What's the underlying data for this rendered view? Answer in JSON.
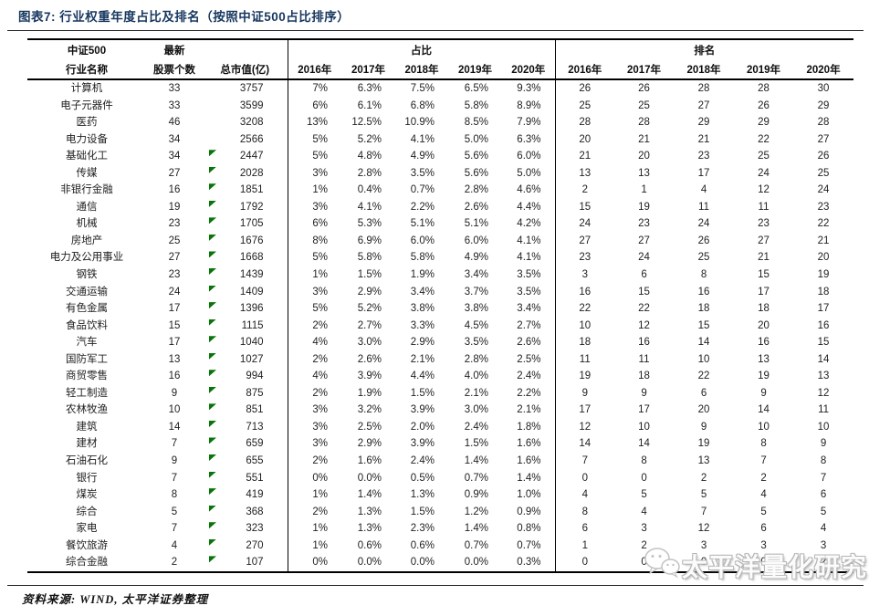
{
  "title": "图表7: 行业权重年度占比及排名（按照中证500占比排序）",
  "source_note": "资料来源: WIND, 太平洋证券整理",
  "watermark_text": "太平洋量化研究",
  "colors": {
    "title_navy": "#17375E",
    "flag_green": "#077507",
    "border_black": "#000000"
  },
  "chart_data": {
    "type": "table",
    "title": "图表7: 行业权重年度占比及排名（按照中证500占比排序）",
    "header": {
      "name_line1": "中证500",
      "name_line2": "行业名称",
      "latest_label": "最新",
      "count_label": "股票个数",
      "mcap_label": "总市值(亿)",
      "share_group_label": "占比",
      "rank_group_label": "排名",
      "years": [
        "2016年",
        "2017年",
        "2018年",
        "2019年",
        "2020年"
      ]
    },
    "rows": [
      {
        "name": "计算机",
        "count": "33",
        "mcap": "3757",
        "flag": false,
        "share": [
          "7%",
          "6.3%",
          "7.5%",
          "6.5%",
          "9.3%"
        ],
        "rank": [
          "26",
          "26",
          "28",
          "28",
          "30"
        ]
      },
      {
        "name": "电子元器件",
        "count": "33",
        "mcap": "3599",
        "flag": false,
        "share": [
          "6%",
          "6.1%",
          "6.8%",
          "5.8%",
          "8.9%"
        ],
        "rank": [
          "25",
          "25",
          "27",
          "26",
          "29"
        ]
      },
      {
        "name": "医药",
        "count": "46",
        "mcap": "3208",
        "flag": false,
        "share": [
          "13%",
          "12.5%",
          "10.9%",
          "8.5%",
          "7.9%"
        ],
        "rank": [
          "28",
          "28",
          "29",
          "29",
          "28"
        ]
      },
      {
        "name": "电力设备",
        "count": "34",
        "mcap": "2566",
        "flag": false,
        "share": [
          "5%",
          "5.2%",
          "4.1%",
          "5.0%",
          "6.3%"
        ],
        "rank": [
          "20",
          "21",
          "21",
          "22",
          "27"
        ]
      },
      {
        "name": "基础化工",
        "count": "34",
        "mcap": "2447",
        "flag": true,
        "share": [
          "5%",
          "4.8%",
          "4.9%",
          "5.6%",
          "6.0%"
        ],
        "rank": [
          "21",
          "20",
          "23",
          "25",
          "26"
        ]
      },
      {
        "name": "传媒",
        "count": "27",
        "mcap": "2028",
        "flag": true,
        "share": [
          "3%",
          "2.8%",
          "3.5%",
          "5.6%",
          "5.0%"
        ],
        "rank": [
          "13",
          "13",
          "17",
          "24",
          "25"
        ]
      },
      {
        "name": "非银行金融",
        "count": "16",
        "mcap": "1851",
        "flag": true,
        "share": [
          "1%",
          "0.4%",
          "0.7%",
          "2.8%",
          "4.6%"
        ],
        "rank": [
          "2",
          "1",
          "4",
          "12",
          "24"
        ]
      },
      {
        "name": "通信",
        "count": "19",
        "mcap": "1792",
        "flag": true,
        "share": [
          "3%",
          "4.1%",
          "2.2%",
          "2.6%",
          "4.4%"
        ],
        "rank": [
          "15",
          "19",
          "11",
          "11",
          "23"
        ]
      },
      {
        "name": "机械",
        "count": "23",
        "mcap": "1705",
        "flag": true,
        "share": [
          "6%",
          "5.3%",
          "5.1%",
          "5.1%",
          "4.2%"
        ],
        "rank": [
          "24",
          "23",
          "24",
          "23",
          "22"
        ]
      },
      {
        "name": "房地产",
        "count": "25",
        "mcap": "1676",
        "flag": true,
        "share": [
          "8%",
          "6.9%",
          "6.0%",
          "6.0%",
          "4.1%"
        ],
        "rank": [
          "27",
          "27",
          "26",
          "27",
          "21"
        ]
      },
      {
        "name": "电力及公用事业",
        "count": "27",
        "mcap": "1668",
        "flag": true,
        "share": [
          "5%",
          "5.8%",
          "5.8%",
          "4.9%",
          "4.1%"
        ],
        "rank": [
          "23",
          "24",
          "25",
          "21",
          "20"
        ]
      },
      {
        "name": "钢铁",
        "count": "23",
        "mcap": "1439",
        "flag": true,
        "share": [
          "1%",
          "1.5%",
          "1.9%",
          "3.4%",
          "3.5%"
        ],
        "rank": [
          "3",
          "6",
          "8",
          "15",
          "19"
        ]
      },
      {
        "name": "交通运输",
        "count": "24",
        "mcap": "1409",
        "flag": true,
        "share": [
          "3%",
          "2.9%",
          "3.4%",
          "3.7%",
          "3.5%"
        ],
        "rank": [
          "16",
          "15",
          "16",
          "17",
          "18"
        ]
      },
      {
        "name": "有色金属",
        "count": "17",
        "mcap": "1396",
        "flag": true,
        "share": [
          "5%",
          "5.2%",
          "3.8%",
          "3.8%",
          "3.4%"
        ],
        "rank": [
          "22",
          "22",
          "18",
          "18",
          "17"
        ]
      },
      {
        "name": "食品饮料",
        "count": "15",
        "mcap": "1115",
        "flag": true,
        "share": [
          "2%",
          "2.7%",
          "3.3%",
          "4.5%",
          "2.7%"
        ],
        "rank": [
          "10",
          "12",
          "15",
          "20",
          "16"
        ]
      },
      {
        "name": "汽车",
        "count": "17",
        "mcap": "1040",
        "flag": true,
        "share": [
          "4%",
          "3.0%",
          "2.9%",
          "3.5%",
          "2.6%"
        ],
        "rank": [
          "18",
          "16",
          "14",
          "16",
          "15"
        ]
      },
      {
        "name": "国防军工",
        "count": "13",
        "mcap": "1027",
        "flag": true,
        "share": [
          "2%",
          "2.6%",
          "2.1%",
          "2.8%",
          "2.5%"
        ],
        "rank": [
          "11",
          "11",
          "10",
          "13",
          "14"
        ]
      },
      {
        "name": "商贸零售",
        "count": "16",
        "mcap": "994",
        "flag": true,
        "share": [
          "4%",
          "3.9%",
          "4.4%",
          "4.0%",
          "2.4%"
        ],
        "rank": [
          "19",
          "18",
          "22",
          "19",
          "13"
        ]
      },
      {
        "name": "轻工制造",
        "count": "9",
        "mcap": "875",
        "flag": true,
        "share": [
          "2%",
          "1.9%",
          "1.5%",
          "2.1%",
          "2.2%"
        ],
        "rank": [
          "9",
          "9",
          "6",
          "9",
          "12"
        ]
      },
      {
        "name": "农林牧渔",
        "count": "10",
        "mcap": "851",
        "flag": true,
        "share": [
          "3%",
          "3.2%",
          "3.9%",
          "3.0%",
          "2.1%"
        ],
        "rank": [
          "17",
          "17",
          "20",
          "14",
          "11"
        ]
      },
      {
        "name": "建筑",
        "count": "14",
        "mcap": "713",
        "flag": true,
        "share": [
          "3%",
          "2.5%",
          "2.0%",
          "2.4%",
          "1.8%"
        ],
        "rank": [
          "12",
          "10",
          "9",
          "10",
          "10"
        ]
      },
      {
        "name": "建材",
        "count": "7",
        "mcap": "659",
        "flag": true,
        "share": [
          "3%",
          "2.9%",
          "3.9%",
          "1.5%",
          "1.6%"
        ],
        "rank": [
          "14",
          "14",
          "19",
          "8",
          "9"
        ]
      },
      {
        "name": "石油石化",
        "count": "9",
        "mcap": "655",
        "flag": true,
        "share": [
          "2%",
          "1.6%",
          "2.4%",
          "1.4%",
          "1.6%"
        ],
        "rank": [
          "7",
          "8",
          "13",
          "7",
          "8"
        ]
      },
      {
        "name": "银行",
        "count": "7",
        "mcap": "551",
        "flag": true,
        "share": [
          "0%",
          "0.0%",
          "0.5%",
          "0.7%",
          "1.4%"
        ],
        "rank": [
          "0",
          "0",
          "2",
          "2",
          "7"
        ]
      },
      {
        "name": "煤炭",
        "count": "8",
        "mcap": "419",
        "flag": true,
        "share": [
          "1%",
          "1.4%",
          "1.3%",
          "0.9%",
          "1.0%"
        ],
        "rank": [
          "4",
          "5",
          "5",
          "4",
          "6"
        ]
      },
      {
        "name": "综合",
        "count": "5",
        "mcap": "368",
        "flag": true,
        "share": [
          "2%",
          "1.3%",
          "1.5%",
          "1.2%",
          "0.9%"
        ],
        "rank": [
          "8",
          "4",
          "7",
          "5",
          "5"
        ]
      },
      {
        "name": "家电",
        "count": "7",
        "mcap": "323",
        "flag": true,
        "share": [
          "1%",
          "1.3%",
          "2.3%",
          "1.4%",
          "0.8%"
        ],
        "rank": [
          "6",
          "3",
          "12",
          "6",
          "4"
        ]
      },
      {
        "name": "餐饮旅游",
        "count": "4",
        "mcap": "270",
        "flag": true,
        "share": [
          "1%",
          "0.6%",
          "0.6%",
          "0.7%",
          "0.7%"
        ],
        "rank": [
          "1",
          "2",
          "3",
          "3",
          "3"
        ]
      },
      {
        "name": "综合金融",
        "count": "2",
        "mcap": "107",
        "flag": true,
        "share": [
          "0%",
          "0.0%",
          "0.0%",
          "0.0%",
          "0.3%"
        ],
        "rank": [
          "0",
          "0",
          "0",
          "0",
          "2"
        ]
      }
    ]
  }
}
